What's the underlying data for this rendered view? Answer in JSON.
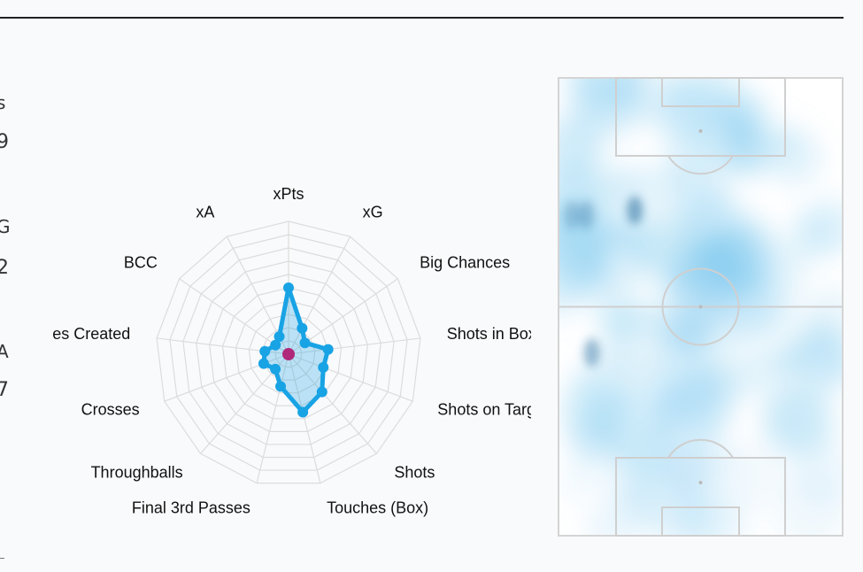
{
  "chart_data": [
    {
      "type": "radar",
      "axes": [
        "xPts",
        "xG",
        "Big Chances",
        "Shots in Box",
        "Shots on Targe",
        "Shots",
        "Touches (Box)",
        "Final 3rd Passes",
        "Throughballs",
        "Crosses",
        "Chances Created",
        "BCC",
        "xA"
      ],
      "rmax": 1.0,
      "rings": 10,
      "series": [
        {
          "values": [
            0.5,
            0.22,
            0.15,
            0.3,
            0.28,
            0.38,
            0.45,
            0.25,
            0.15,
            0.2,
            0.18,
            0.12,
            0.15
          ],
          "color": "#18a3e4"
        }
      ],
      "center_marker_color": "#b0287a",
      "grid": true,
      "legend": "none"
    },
    {
      "type": "heatmap",
      "subject": "football pitch",
      "color": "#7cc9ef",
      "hotspot_color": "#2a6e9e",
      "hotspots": [
        {
          "x": 0.27,
          "y": 0.29,
          "w": 1.0
        },
        {
          "x": 0.1,
          "y": 0.3,
          "w": 0.6
        },
        {
          "x": 0.12,
          "y": 0.6,
          "w": 0.8
        },
        {
          "x": 0.05,
          "y": 0.3,
          "w": 0.5
        }
      ]
    }
  ],
  "page": {
    "edge_glyphs": [
      "s",
      "9",
      "G",
      "2",
      "A",
      "7"
    ]
  }
}
